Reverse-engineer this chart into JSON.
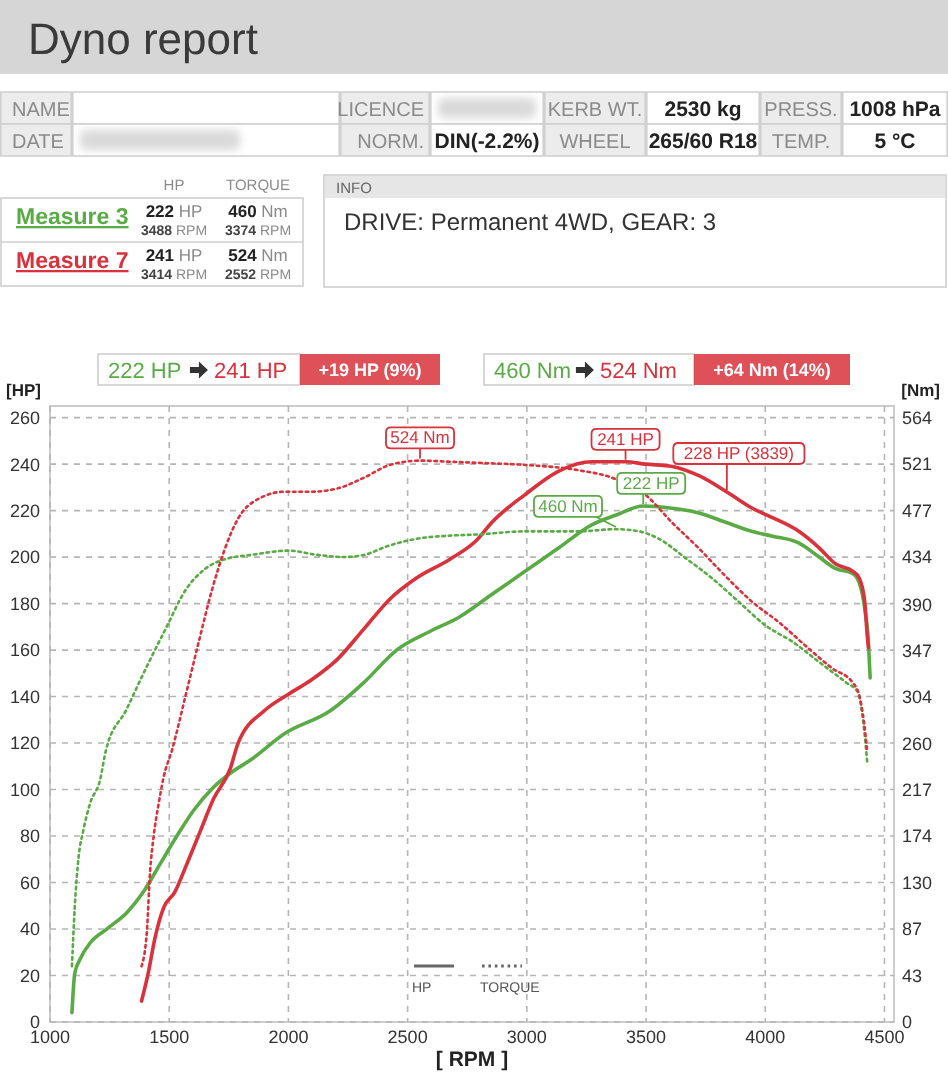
{
  "chart_data": [
    {
      "type": "other",
      "title": "Dyno report",
      "annotations": [
        "NAME",
        "LICENCE",
        "KERB WT.",
        "2530 kg",
        "PRESS.",
        "1008 hPa",
        "DATE",
        "NORM.",
        "DIN(-2.2%)",
        "WHEEL",
        "265/60 R18",
        "TEMP.",
        "5 °C"
      ]
    },
    {
      "type": "line",
      "xlabel": "[ RPM ]",
      "ylabel": "[HP]",
      "y2label": "[Nm]",
      "xlim": [
        1000,
        4540
      ],
      "xticks": [
        1000,
        1500,
        2000,
        2500,
        3000,
        3500,
        4000,
        4500
      ],
      "ylim": [
        0,
        265
      ],
      "yticks": [
        0,
        20,
        40,
        60,
        80,
        100,
        120,
        140,
        160,
        180,
        200,
        220,
        240,
        260
      ],
      "y2lim": [
        0,
        575
      ],
      "y2ticks": [
        0,
        43,
        87,
        130,
        174,
        217,
        260,
        304,
        347,
        390,
        434,
        477,
        521,
        564
      ],
      "grid": true,
      "legend": "top left",
      "series": [
        {
          "name": "Measure 3",
          "color": "#5aab46",
          "x": [
            1092,
            1104,
            1126,
            1168,
            1238,
            1322,
            1392,
            1462,
            1532,
            1602,
            1686,
            1756,
            1845,
            1983,
            2177,
            2316,
            2454,
            2593,
            2714,
            2854,
            2994,
            3134,
            3274,
            3372,
            3488,
            3610,
            3722,
            3834,
            3946,
            4030,
            4142,
            4226,
            4296,
            4366,
            4394,
            4417,
            4433,
            4440
          ],
          "values": [
            4,
            21,
            27,
            34,
            40,
            47,
            56,
            68,
            80,
            91,
            101,
            107,
            113,
            124,
            134,
            146,
            160,
            168,
            174,
            184,
            194,
            204,
            214,
            218,
            222,
            221,
            219,
            215,
            211,
            209,
            206,
            200,
            195,
            193,
            189,
            178,
            163,
            148
          ]
        },
        {
          "name": "Measure 7",
          "color": "#d9323c",
          "x": [
            1384,
            1412,
            1440,
            1476,
            1524,
            1574,
            1630,
            1686,
            1756,
            1789,
            1900,
            2000,
            2094,
            2205,
            2316,
            2426,
            2537,
            2676,
            2787,
            2854,
            2994,
            3134,
            3274,
            3414,
            3498,
            3610,
            3722,
            3839,
            3946,
            4030,
            4142,
            4226,
            4296,
            4366,
            4394,
            4417,
            4428,
            4433
          ],
          "values": [
            9,
            21,
            36,
            49,
            56,
            68,
            82,
            96,
            109,
            120,
            134,
            141,
            147,
            156,
            169,
            182,
            191,
            199,
            207,
            215,
            227,
            237,
            241,
            241,
            240,
            239,
            235,
            228,
            221,
            217,
            211,
            204,
            197,
            194,
            191,
            181,
            166,
            161
          ]
        },
        {
          "color": "#5aab46",
          "axis": "y2",
          "line_style": "dotted",
          "x": [
            1092,
            1104,
            1120,
            1140,
            1168,
            1210,
            1235,
            1319,
            1402,
            1485,
            1568,
            1651,
            1734,
            1845,
            2000,
            2122,
            2233,
            2316,
            2426,
            2537,
            2676,
            2787,
            2994,
            3218,
            3374,
            3470,
            3554,
            3666,
            3778,
            3890,
            4002,
            4114,
            4226,
            4338,
            4388,
            4411,
            4428
          ],
          "values": [
            52,
            108,
            154,
            179,
            204,
            226,
            254,
            291,
            330,
            367,
            403,
            423,
            432,
            436,
            440,
            436,
            434,
            436,
            445,
            451,
            454,
            455,
            458,
            458,
            460,
            458,
            451,
            433,
            414,
            392,
            370,
            355,
            336,
            317,
            308,
            280,
            242
          ]
        },
        {
          "color": "#d9323c",
          "axis": "y2",
          "line_style": "dotted",
          "x": [
            1384,
            1406,
            1420,
            1434,
            1456,
            1476,
            1512,
            1568,
            1623,
            1679,
            1734,
            1789,
            1872,
            1983,
            2094,
            2205,
            2316,
            2426,
            2552,
            2676,
            2787,
            2994,
            3218,
            3358,
            3498,
            3610,
            3722,
            3834,
            3946,
            4058,
            4170,
            4282,
            4366,
            4394,
            4414,
            4428
          ],
          "values": [
            52,
            84,
            141,
            172,
            204,
            228,
            254,
            304,
            354,
            403,
            442,
            470,
            488,
            495,
            495,
            498,
            508,
            520,
            524,
            523,
            522,
            520,
            515,
            508,
            492,
            466,
            442,
            416,
            392,
            373,
            351,
            330,
            317,
            305,
            280,
            252
          ]
        }
      ],
      "annotations": [
        "HP",
        "TORQUE",
        "222 HP",
        "3488 RPM",
        "460 Nm",
        "3374 RPM",
        "241 HP",
        "3414 RPM",
        "524 Nm",
        "2552 RPM",
        "INFO",
        "DRIVE: Permanent 4WD, GEAR: 3",
        "222 HP",
        "241 HP",
        "+19 HP (9%)",
        "460 Nm",
        "524 Nm",
        "+64 Nm (14%)",
        "HP",
        "TORQUE",
        {
          "text": "524 Nm",
          "x": 2552,
          "y": 241.6
        },
        {
          "text": "241 HP",
          "x": 3414,
          "y": 241
        },
        {
          "text": "228 HP (3839)",
          "x": 3839,
          "y": 228
        },
        {
          "text": "222 HP",
          "x": 3488,
          "y": 222
        },
        {
          "text": "460 Nm",
          "x": 3374,
          "y": 212.1
        }
      ]
    }
  ]
}
